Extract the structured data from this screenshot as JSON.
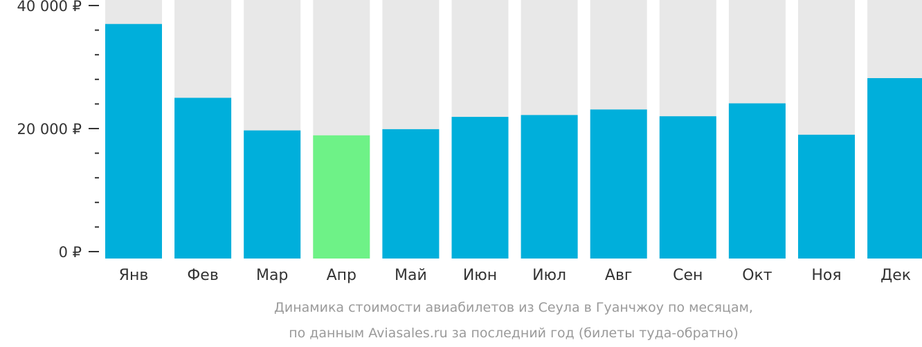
{
  "chart_data": {
    "type": "bar",
    "categories": [
      "Янв",
      "Фев",
      "Мар",
      "Апр",
      "Май",
      "Июн",
      "Июл",
      "Авг",
      "Сен",
      "Окт",
      "Ноя",
      "Дек"
    ],
    "values": [
      37000,
      25000,
      19700,
      18900,
      19900,
      21900,
      22200,
      23100,
      22000,
      24100,
      19000,
      28200
    ],
    "ylim": [
      0,
      40000
    ],
    "yticks": [
      {
        "value": 0,
        "label": "0 ₽"
      },
      {
        "value": 20000,
        "label": "20 000 ₽"
      },
      {
        "value": 40000,
        "label": "40 000 ₽"
      }
    ],
    "minor_tick_step": 4000,
    "highlight_index": 3,
    "grid": false,
    "legend": "none",
    "caption": [
      "Динамика стоимости авиабилетов из Сеула в Гуанчжоу по месяцам,",
      "по данным Aviasales.ru за последний год (билеты туда-обратно)"
    ]
  },
  "colors": {
    "bar": "#00afdb",
    "highlight": "#6ef287",
    "background_bar": "#e8e8e8",
    "axis": "#333333",
    "caption": "#9a9a9a"
  }
}
